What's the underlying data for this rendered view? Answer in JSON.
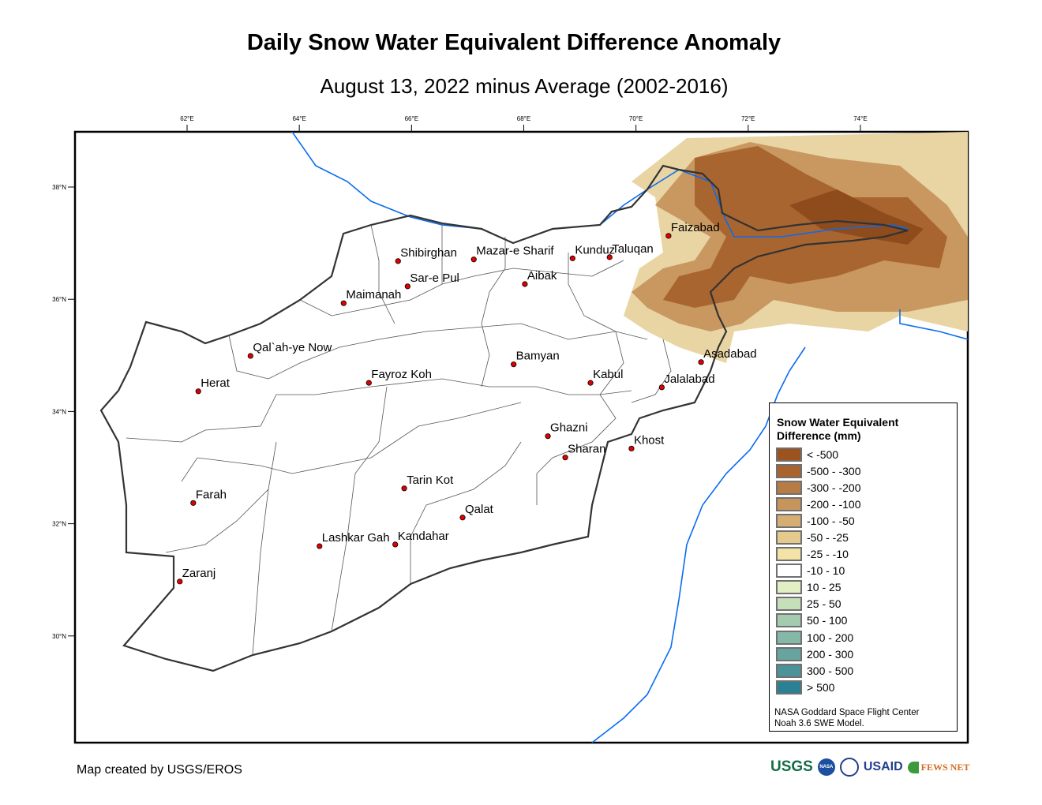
{
  "title": "Daily Snow Water Equivalent Difference Anomaly",
  "subtitle": "August 13, 2022 minus Average (2002-2016)",
  "axes": {
    "lon_ticks": [
      "62°E",
      "64°E",
      "66°E",
      "68°E",
      "70°E",
      "72°E",
      "74°E"
    ],
    "lat_ticks": [
      "38°N",
      "36°N",
      "34°N",
      "32°N",
      "30°N"
    ]
  },
  "cities": [
    {
      "name": "Shibirghan",
      "lon": 65.76,
      "lat": 36.68
    },
    {
      "name": "Mazar-e Sharif",
      "lon": 67.11,
      "lat": 36.71
    },
    {
      "name": "Kunduz",
      "lon": 68.87,
      "lat": 36.73
    },
    {
      "name": "Taluqan",
      "lon": 69.53,
      "lat": 36.75
    },
    {
      "name": "Faizabad",
      "lon": 70.58,
      "lat": 37.13
    },
    {
      "name": "Sar-e Pul",
      "lon": 65.93,
      "lat": 36.23
    },
    {
      "name": "Aibak",
      "lon": 68.02,
      "lat": 36.27
    },
    {
      "name": "Maimanah",
      "lon": 64.79,
      "lat": 35.93
    },
    {
      "name": "Qal`ah-ye Now",
      "lon": 63.13,
      "lat": 34.99
    },
    {
      "name": "Bamyan",
      "lon": 67.82,
      "lat": 34.84
    },
    {
      "name": "Asadabad",
      "lon": 71.16,
      "lat": 34.88
    },
    {
      "name": "Fayroz Koh",
      "lon": 65.24,
      "lat": 34.51
    },
    {
      "name": "Kabul",
      "lon": 69.19,
      "lat": 34.51
    },
    {
      "name": "Jalalabad",
      "lon": 70.46,
      "lat": 34.43
    },
    {
      "name": "Herat",
      "lon": 62.2,
      "lat": 34.36
    },
    {
      "name": "Ghazni",
      "lon": 68.43,
      "lat": 33.56
    },
    {
      "name": "Khost",
      "lon": 69.92,
      "lat": 33.34
    },
    {
      "name": "Sharan",
      "lon": 68.74,
      "lat": 33.18
    },
    {
      "name": "Tarin Kot",
      "lon": 65.87,
      "lat": 32.63
    },
    {
      "name": "Farah",
      "lon": 62.11,
      "lat": 32.37
    },
    {
      "name": "Qalat",
      "lon": 66.91,
      "lat": 32.11
    },
    {
      "name": "Lashkar Gah",
      "lon": 64.36,
      "lat": 31.6
    },
    {
      "name": "Kandahar",
      "lon": 65.71,
      "lat": 31.63
    },
    {
      "name": "Zaranj",
      "lon": 61.87,
      "lat": 30.97
    }
  ],
  "legend": {
    "title": "Snow Water Equivalent\nDifference (mm)",
    "items": [
      {
        "label": "< -500",
        "color": "#9c5320"
      },
      {
        "label": "-500 - -300",
        "color": "#a8632f"
      },
      {
        "label": "-300 - -200",
        "color": "#b77c46"
      },
      {
        "label": "-200 - -100",
        "color": "#c6955c"
      },
      {
        "label": "-100 - -50",
        "color": "#d6ae74"
      },
      {
        "label": "-50 - -25",
        "color": "#e6c98c"
      },
      {
        "label": "-25 - -10",
        "color": "#f3e3a7"
      },
      {
        "label": "-10 - 10",
        "color": "#ffffff"
      },
      {
        "label": "10 - 25",
        "color": "#e2eec3"
      },
      {
        "label": "25 - 50",
        "color": "#c5dfb9"
      },
      {
        "label": "50 - 100",
        "color": "#a4cbb0"
      },
      {
        "label": "100 - 200",
        "color": "#86b8a7"
      },
      {
        "label": "200 - 300",
        "color": "#68a49f"
      },
      {
        "label": "300 - 500",
        "color": "#4b9299"
      },
      {
        "label": "> 500",
        "color": "#2a8194"
      }
    ],
    "source": "NASA Goddard Space Flight Center\nNoah 3.6 SWE Model."
  },
  "credit": "Map created by USGS/EROS",
  "logos": [
    "USGS",
    "NASA",
    "USAID",
    "FEWS NET"
  ]
}
